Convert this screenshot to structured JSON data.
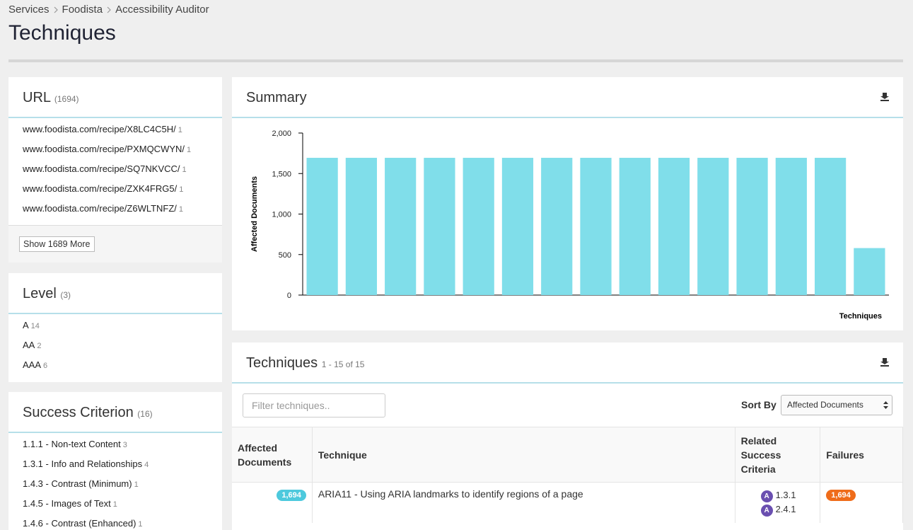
{
  "breadcrumb": [
    "Services",
    "Foodista",
    "Accessibility Auditor"
  ],
  "title": "Techniques",
  "url_facet": {
    "title": "URL",
    "count": "(1694)",
    "items": [
      {
        "label": "www.foodista.com/recipe/X8LC4C5H/",
        "count": 1
      },
      {
        "label": "www.foodista.com/recipe/PXMQCWYN/",
        "count": 1
      },
      {
        "label": "www.foodista.com/recipe/SQ7NKVCC/",
        "count": 1
      },
      {
        "label": "www.foodista.com/recipe/ZXK4FRG5/",
        "count": 1
      },
      {
        "label": "www.foodista.com/recipe/Z6WLTNFZ/",
        "count": 1
      }
    ],
    "more_button": "Show 1689 More"
  },
  "level_facet": {
    "title": "Level",
    "count": "(3)",
    "items": [
      {
        "label": "A",
        "count": 14
      },
      {
        "label": "AA",
        "count": 2
      },
      {
        "label": "AAA",
        "count": 6
      }
    ]
  },
  "criterion_facet": {
    "title": "Success Criterion",
    "count": "(16)",
    "items": [
      {
        "label": "1.1.1 - Non-text Content",
        "count": 3
      },
      {
        "label": "1.3.1 - Info and Relationships",
        "count": 4
      },
      {
        "label": "1.4.3 - Contrast (Minimum)",
        "count": 1
      },
      {
        "label": "1.4.5 - Images of Text",
        "count": 1
      },
      {
        "label": "1.4.6 - Contrast (Enhanced)",
        "count": 1
      }
    ]
  },
  "chart_data": {
    "type": "bar",
    "title": "Summary",
    "y_label": "Affected Documents",
    "x_label": "Techniques",
    "categories": [
      null,
      null,
      null,
      null,
      null,
      null,
      null,
      null,
      null,
      null,
      null,
      null,
      null,
      null,
      null
    ],
    "values": [
      1694,
      1694,
      1694,
      1694,
      1694,
      1694,
      1694,
      1694,
      1694,
      1694,
      1694,
      1694,
      1694,
      1694,
      580
    ],
    "color": "#80deea",
    "ylim": [
      0,
      2000
    ],
    "yticks": [
      0,
      500,
      {
        "value": 1000,
        "label": "1,000"
      },
      {
        "value": 1500,
        "label": "1,500"
      },
      {
        "value": 2000,
        "label": "2,000"
      }
    ],
    "grid": false
  },
  "techniques_table": {
    "title": "Techniques",
    "range": "1 - 15 of 15",
    "filter_placeholder": "Filter techniques..",
    "sort_label": "Sort By",
    "sort_value": "Affected Documents",
    "columns": [
      "Affected Documents",
      "Technique",
      "Related Success Criteria",
      "Failures"
    ],
    "rows": [
      {
        "affected": "1,694",
        "technique": "ARIA11 - Using ARIA landmarks to identify regions of a page",
        "criteria": [
          {
            "level": "A",
            "id": "1.3.1"
          },
          {
            "level": "A",
            "id": "2.4.1"
          }
        ],
        "failures": "1,694"
      }
    ]
  }
}
